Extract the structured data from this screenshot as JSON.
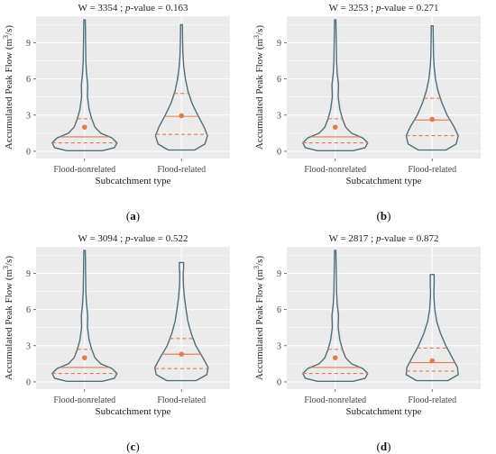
{
  "chart_data": [
    {
      "type": "violin",
      "panel": "a",
      "caption": "(a)",
      "title_prefix": "W = 3354 ; ",
      "title_pvalue_label": "p",
      "title_suffix": "-value = 0.163",
      "xlabel": "Subcatchment type",
      "ylabel": "Accumulated Peak Flow (m3/s)",
      "ylim": [
        -0.6,
        11.2
      ],
      "yticks": [
        0,
        3,
        6,
        9
      ],
      "categories": [
        "Flood-nonrelated",
        "Flood-related"
      ],
      "groups": [
        {
          "name": "Flood-nonrelated",
          "min": 0.05,
          "max": 10.9,
          "q1": 0.7,
          "median": 1.2,
          "q3": 2.7,
          "mean": 2.0,
          "profile": [
            [
              0.05,
              0.55
            ],
            [
              0.3,
              0.92
            ],
            [
              0.7,
              1.0
            ],
            [
              1.1,
              0.85
            ],
            [
              1.5,
              0.5
            ],
            [
              2.0,
              0.32
            ],
            [
              2.7,
              0.22
            ],
            [
              3.5,
              0.14
            ],
            [
              4.5,
              0.09
            ],
            [
              5.5,
              0.1
            ],
            [
              6.5,
              0.06
            ],
            [
              7.5,
              0.04
            ],
            [
              8.5,
              0.035
            ],
            [
              9.5,
              0.03
            ],
            [
              10.3,
              0.025
            ],
            [
              10.9,
              0.02
            ]
          ]
        },
        {
          "name": "Flood-related",
          "min": 0.1,
          "max": 10.5,
          "q1": 1.4,
          "median": 2.9,
          "q3": 4.8,
          "mean": 2.95,
          "profile": [
            [
              0.1,
              0.4
            ],
            [
              0.6,
              0.72
            ],
            [
              1.3,
              0.8
            ],
            [
              2.0,
              0.7
            ],
            [
              3.0,
              0.5
            ],
            [
              4.0,
              0.32
            ],
            [
              5.0,
              0.2
            ],
            [
              6.0,
              0.12
            ],
            [
              7.0,
              0.07
            ],
            [
              8.0,
              0.045
            ],
            [
              9.0,
              0.035
            ],
            [
              10.0,
              0.03
            ],
            [
              10.5,
              0.03
            ]
          ]
        }
      ]
    },
    {
      "type": "violin",
      "panel": "b",
      "caption": "(b)",
      "title_prefix": "W = 3253 ; ",
      "title_pvalue_label": "p",
      "title_suffix": "-value = 0.271",
      "xlabel": "Subcatchment type",
      "ylabel": "Accumulated Peak Flow (m3/s)",
      "ylim": [
        -0.6,
        11.2
      ],
      "yticks": [
        0,
        3,
        6,
        9
      ],
      "categories": [
        "Flood-nonrelated",
        "Flood-related"
      ],
      "groups": [
        {
          "name": "Flood-nonrelated",
          "min": 0.05,
          "max": 10.9,
          "q1": 0.7,
          "median": 1.2,
          "q3": 2.7,
          "mean": 2.0,
          "profile": [
            [
              0.05,
              0.55
            ],
            [
              0.3,
              0.92
            ],
            [
              0.7,
              1.0
            ],
            [
              1.1,
              0.85
            ],
            [
              1.5,
              0.5
            ],
            [
              2.0,
              0.32
            ],
            [
              2.7,
              0.22
            ],
            [
              3.5,
              0.14
            ],
            [
              4.5,
              0.09
            ],
            [
              5.5,
              0.1
            ],
            [
              6.5,
              0.06
            ],
            [
              7.5,
              0.04
            ],
            [
              8.5,
              0.035
            ],
            [
              9.5,
              0.03
            ],
            [
              10.3,
              0.025
            ],
            [
              10.9,
              0.02
            ]
          ]
        },
        {
          "name": "Flood-related",
          "min": 0.1,
          "max": 10.4,
          "q1": 1.3,
          "median": 2.6,
          "q3": 4.4,
          "mean": 2.65,
          "profile": [
            [
              0.1,
              0.42
            ],
            [
              0.6,
              0.74
            ],
            [
              1.3,
              0.8
            ],
            [
              2.0,
              0.68
            ],
            [
              3.0,
              0.46
            ],
            [
              4.0,
              0.3
            ],
            [
              5.0,
              0.18
            ],
            [
              6.0,
              0.1
            ],
            [
              7.0,
              0.06
            ],
            [
              8.0,
              0.04
            ],
            [
              9.0,
              0.035
            ],
            [
              10.0,
              0.03
            ],
            [
              10.4,
              0.03
            ]
          ]
        }
      ]
    },
    {
      "type": "violin",
      "panel": "c",
      "caption": "(c)",
      "title_prefix": "W = 3094 ; ",
      "title_pvalue_label": "p",
      "title_suffix": "-value = 0.522",
      "xlabel": "Subcatchment type",
      "ylabel": "Accumulated Peak Flow (m3/s)",
      "ylim": [
        -0.6,
        11.2
      ],
      "yticks": [
        0,
        3,
        6,
        9
      ],
      "categories": [
        "Flood-nonrelated",
        "Flood-related"
      ],
      "groups": [
        {
          "name": "Flood-nonrelated",
          "min": 0.05,
          "max": 10.9,
          "q1": 0.7,
          "median": 1.2,
          "q3": 2.7,
          "mean": 2.0,
          "profile": [
            [
              0.05,
              0.55
            ],
            [
              0.3,
              0.92
            ],
            [
              0.7,
              1.0
            ],
            [
              1.1,
              0.85
            ],
            [
              1.5,
              0.5
            ],
            [
              2.0,
              0.32
            ],
            [
              2.7,
              0.22
            ],
            [
              3.5,
              0.14
            ],
            [
              4.5,
              0.09
            ],
            [
              5.5,
              0.1
            ],
            [
              6.5,
              0.06
            ],
            [
              7.5,
              0.04
            ],
            [
              8.5,
              0.035
            ],
            [
              9.5,
              0.03
            ],
            [
              10.3,
              0.025
            ],
            [
              10.9,
              0.02
            ]
          ]
        },
        {
          "name": "Flood-related",
          "min": 0.1,
          "max": 9.9,
          "q1": 1.1,
          "median": 2.3,
          "q3": 3.6,
          "mean": 2.3,
          "profile": [
            [
              0.1,
              0.45
            ],
            [
              0.6,
              0.78
            ],
            [
              1.2,
              0.82
            ],
            [
              2.0,
              0.66
            ],
            [
              3.0,
              0.44
            ],
            [
              4.0,
              0.3
            ],
            [
              5.0,
              0.2
            ],
            [
              6.0,
              0.14
            ],
            [
              7.0,
              0.09
            ],
            [
              8.0,
              0.06
            ],
            [
              9.0,
              0.05
            ],
            [
              9.4,
              0.065
            ],
            [
              9.9,
              0.065
            ]
          ]
        }
      ]
    },
    {
      "type": "violin",
      "panel": "d",
      "caption": "(d)",
      "title_prefix": "W = 2817 ; ",
      "title_pvalue_label": "p",
      "title_suffix": "-value = 0.872",
      "xlabel": "Subcatchment type",
      "ylabel": "Accumulated Peak Flow (m3/s)",
      "ylim": [
        -0.6,
        11.2
      ],
      "yticks": [
        0,
        3,
        6,
        9
      ],
      "categories": [
        "Flood-nonrelated",
        "Flood-related"
      ],
      "groups": [
        {
          "name": "Flood-nonrelated",
          "min": 0.05,
          "max": 10.9,
          "q1": 0.7,
          "median": 1.2,
          "q3": 2.7,
          "mean": 2.0,
          "profile": [
            [
              0.05,
              0.55
            ],
            [
              0.3,
              0.92
            ],
            [
              0.7,
              1.0
            ],
            [
              1.1,
              0.85
            ],
            [
              1.5,
              0.5
            ],
            [
              2.0,
              0.32
            ],
            [
              2.7,
              0.22
            ],
            [
              3.5,
              0.14
            ],
            [
              4.5,
              0.09
            ],
            [
              5.5,
              0.1
            ],
            [
              6.5,
              0.06
            ],
            [
              7.5,
              0.04
            ],
            [
              8.5,
              0.035
            ],
            [
              9.5,
              0.03
            ],
            [
              10.3,
              0.025
            ],
            [
              10.9,
              0.02
            ]
          ]
        },
        {
          "name": "Flood-related",
          "min": 0.1,
          "max": 8.9,
          "q1": 0.9,
          "median": 1.6,
          "q3": 2.8,
          "mean": 1.75,
          "profile": [
            [
              0.1,
              0.48
            ],
            [
              0.6,
              0.8
            ],
            [
              1.2,
              0.78
            ],
            [
              2.0,
              0.62
            ],
            [
              3.0,
              0.42
            ],
            [
              4.0,
              0.26
            ],
            [
              5.0,
              0.14
            ],
            [
              6.0,
              0.08
            ],
            [
              7.0,
              0.055
            ],
            [
              7.6,
              0.05
            ],
            [
              8.0,
              0.06
            ],
            [
              8.9,
              0.06
            ]
          ]
        }
      ]
    }
  ],
  "colors": {
    "panel_bg": "#ebebeb",
    "grid": "#ffffff",
    "violin_stroke": "#4f6d7a",
    "quantile_line": "#e07b53",
    "mean_dot": "#e07b53",
    "text": "#222222"
  }
}
